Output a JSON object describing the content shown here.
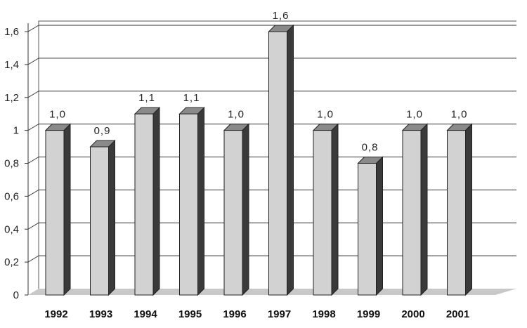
{
  "chart_data": {
    "type": "bar",
    "title": "",
    "xlabel": "",
    "ylabel": "",
    "categories": [
      "1992",
      "1993",
      "1994",
      "1995",
      "1996",
      "1997",
      "1998",
      "1999",
      "2000",
      "2001"
    ],
    "values": [
      1.0,
      0.9,
      1.1,
      1.1,
      1.0,
      1.6,
      1.0,
      0.8,
      1.0,
      1.0
    ],
    "data_labels": [
      "1,0",
      "0,9",
      "1,1",
      "1,1",
      "1,0",
      "1,6",
      "1,0",
      "0,8",
      "1,0",
      "1,0"
    ],
    "ylim": [
      0,
      1.6
    ],
    "yticks": [
      "0",
      "0,2",
      "0,4",
      "0,6",
      "0,8",
      "1",
      "1,2",
      "1,4",
      "1,6"
    ],
    "grid": true,
    "style": "3d",
    "colors": {
      "bar_front": "#d2d2d2",
      "bar_side": "#3a3a3a",
      "bar_top": "#8a8a8a",
      "floor": "#c8c8c8",
      "gridline": "#333333"
    }
  }
}
